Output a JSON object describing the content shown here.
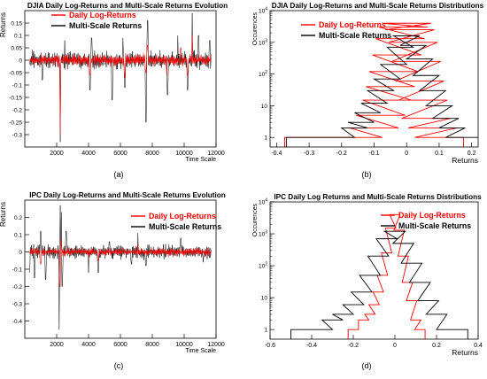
{
  "figure": {
    "panels": [
      {
        "caption": "(a)"
      },
      {
        "caption": "(b)"
      },
      {
        "caption": "(c)"
      },
      {
        "caption": "(d)"
      }
    ]
  },
  "chart_data": [
    {
      "type": "line",
      "title": "DJIA Daily Log-Returns and Multi-Scale Returns Evolution",
      "xlabel": "Time Scale",
      "ylabel": "Returns",
      "xlim": [
        0,
        12000
      ],
      "ylim": [
        -0.35,
        0.2
      ],
      "xticks": [
        2000,
        4000,
        6000,
        8000,
        10000,
        12000
      ],
      "yticks": [
        -0.3,
        -0.25,
        -0.2,
        -0.15,
        -0.1,
        -0.05,
        0,
        0.05,
        0.1,
        0.15
      ],
      "legend_position": "top-left",
      "series": [
        {
          "name": "Daily Log-Returns",
          "color": "#ff0000",
          "typical_band": 0.03,
          "spikes": [
            [
              2230,
              -0.3
            ],
            [
              4080,
              -0.06
            ],
            [
              6280,
              -0.07
            ],
            [
              7600,
              -0.05
            ],
            [
              7700,
              0.06
            ],
            [
              8900,
              -0.06
            ],
            [
              9800,
              0.05
            ],
            [
              10200,
              -0.06
            ],
            [
              10500,
              0.1
            ]
          ]
        },
        {
          "name": "Multi-Scale Returns",
          "color": "#000000",
          "typical_band": 0.045,
          "spikes": [
            [
              1100,
              -0.08
            ],
            [
              2230,
              -0.33
            ],
            [
              2500,
              0.08
            ],
            [
              4080,
              -0.12
            ],
            [
              4200,
              0.09
            ],
            [
              5480,
              -0.16
            ],
            [
              6150,
              0.09
            ],
            [
              6280,
              -0.11
            ],
            [
              7600,
              -0.25
            ],
            [
              7700,
              0.16
            ],
            [
              8950,
              -0.14
            ],
            [
              9600,
              0.1
            ],
            [
              10200,
              -0.12
            ],
            [
              10500,
              0.19
            ],
            [
              10900,
              0.1
            ],
            [
              11600,
              0.08
            ]
          ]
        }
      ]
    },
    {
      "type": "line",
      "title": "DJIA Daily Log-Returns and Multi-Scale Returns Distributions",
      "xlabel": "Returns",
      "ylabel": "Occurences",
      "xlim": [
        -0.42,
        0.22
      ],
      "ylim": [
        0.5,
        10000
      ],
      "log_y": true,
      "xticks": [
        -0.4,
        -0.3,
        -0.2,
        -0.1,
        0,
        0.1,
        0.2
      ],
      "yticks": [
        1,
        10,
        100,
        1000,
        10000
      ],
      "legend_position": "top-right",
      "series": [
        {
          "name": "Daily Log-Returns",
          "color": "#ff0000",
          "x": [
            -0.3,
            -0.15,
            -0.1,
            -0.08,
            -0.06,
            -0.05,
            -0.04,
            -0.03,
            -0.02,
            -0.01,
            0,
            0.01,
            0.02,
            0.03,
            0.04,
            0.05,
            0.06,
            0.08,
            0.1
          ],
          "y": [
            1,
            1,
            2,
            5,
            15,
            40,
            120,
            400,
            1300,
            3000,
            4000,
            2500,
            1000,
            250,
            60,
            15,
            4,
            2,
            1
          ]
        },
        {
          "name": "Multi-Scale Returns",
          "color": "#000000",
          "x": [
            -0.33,
            -0.25,
            -0.2,
            -0.16,
            -0.14,
            -0.12,
            -0.1,
            -0.08,
            -0.06,
            -0.04,
            -0.02,
            0,
            0.02,
            0.04,
            0.06,
            0.08,
            0.1,
            0.12,
            0.14,
            0.16,
            0.19
          ],
          "y": [
            1,
            1,
            1,
            2,
            3,
            6,
            12,
            30,
            70,
            200,
            700,
            1600,
            800,
            300,
            90,
            30,
            10,
            4,
            2,
            1,
            1
          ]
        }
      ]
    },
    {
      "type": "line",
      "title": "IPC Daily Log-Returns and Multi-Scale Returns Evolution",
      "xlabel": "Time Scale",
      "ylabel": "Returns",
      "xlim": [
        0,
        12000
      ],
      "ylim": [
        -0.5,
        0.3
      ],
      "xticks": [
        2000,
        4000,
        6000,
        8000,
        10000,
        12000
      ],
      "yticks": [
        -0.4,
        -0.3,
        -0.2,
        -0.1,
        0,
        0.1,
        0.2
      ],
      "legend_position": "top-right",
      "series": [
        {
          "name": "Daily Log-Returns",
          "color": "#ff0000",
          "typical_band": 0.03,
          "spikes": [
            [
              1000,
              -0.07
            ],
            [
              2200,
              -0.2
            ],
            [
              2300,
              0.08
            ],
            [
              4600,
              -0.05
            ],
            [
              7100,
              0.05
            ]
          ]
        },
        {
          "name": "Multi-Scale Returns",
          "color": "#000000",
          "typical_band": 0.05,
          "spikes": [
            [
              300,
              -0.12
            ],
            [
              600,
              -0.15
            ],
            [
              1000,
              0.12
            ],
            [
              1300,
              -0.16
            ],
            [
              2150,
              -0.45
            ],
            [
              2230,
              0.27
            ],
            [
              2300,
              0.23
            ],
            [
              2350,
              -0.2
            ],
            [
              2600,
              0.12
            ],
            [
              4000,
              -0.12
            ],
            [
              4600,
              -0.12
            ],
            [
              5300,
              0.06
            ],
            [
              6700,
              -0.07
            ],
            [
              7100,
              0.11
            ],
            [
              7600,
              -0.08
            ],
            [
              9800,
              0.08
            ],
            [
              11200,
              -0.06
            ]
          ]
        }
      ]
    },
    {
      "type": "line",
      "title": "IPC Daily Log Returns and Multi-Scale Returns Distributions",
      "xlabel": "Returns",
      "ylabel": "Occurences",
      "xlim": [
        -0.6,
        0.4
      ],
      "ylim": [
        0.5,
        10000
      ],
      "log_y": true,
      "xticks": [
        -0.6,
        -0.4,
        -0.2,
        0,
        0.2,
        0.4
      ],
      "yticks": [
        1,
        10,
        100,
        1000,
        10000
      ],
      "legend_position": "top-right",
      "series": [
        {
          "name": "Daily Log-Returns",
          "color": "#ff0000",
          "x": [
            -0.2,
            -0.15,
            -0.12,
            -0.1,
            -0.08,
            -0.06,
            -0.04,
            -0.02,
            0,
            0.02,
            0.04,
            0.06,
            0.08,
            0.1,
            0.12
          ],
          "y": [
            1,
            2,
            3,
            6,
            15,
            50,
            250,
            1500,
            4000,
            1300,
            200,
            30,
            8,
            2,
            1
          ]
        },
        {
          "name": "Multi-Scale Returns",
          "color": "#000000",
          "x": [
            -0.45,
            -0.35,
            -0.3,
            -0.25,
            -0.2,
            -0.16,
            -0.12,
            -0.08,
            -0.04,
            0,
            0.04,
            0.08,
            0.12,
            0.16,
            0.2,
            0.25,
            0.3
          ],
          "y": [
            1,
            1,
            2,
            3,
            6,
            15,
            50,
            200,
            700,
            1200,
            500,
            120,
            30,
            8,
            3,
            1,
            1
          ]
        }
      ]
    }
  ]
}
